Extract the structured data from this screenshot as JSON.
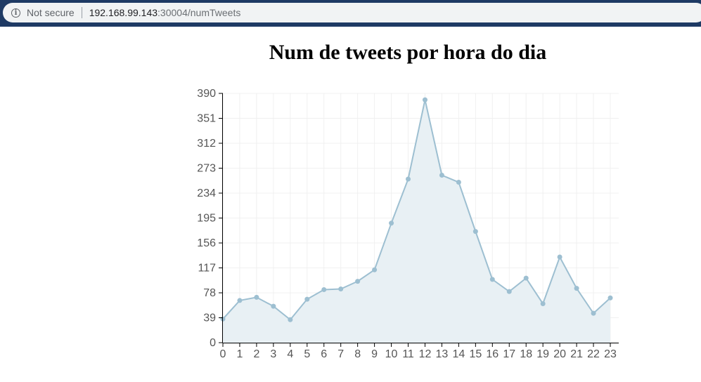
{
  "browser": {
    "security_label": "Not secure",
    "url_host": "192.168.99.143",
    "url_path": ":30004/numTweets",
    "bar_color": "#1e3a64"
  },
  "chart_data": {
    "type": "area",
    "title": "Num de tweets por hora do dia",
    "xlabel": "",
    "ylabel": "",
    "categories": [
      "0",
      "1",
      "2",
      "3",
      "4",
      "5",
      "6",
      "7",
      "8",
      "9",
      "10",
      "11",
      "12",
      "13",
      "14",
      "15",
      "16",
      "17",
      "18",
      "19",
      "20",
      "21",
      "22",
      "23"
    ],
    "values": [
      37,
      66,
      71,
      57,
      36,
      68,
      83,
      84,
      96,
      114,
      187,
      256,
      380,
      262,
      251,
      174,
      99,
      80,
      101,
      61,
      134,
      85,
      46,
      70
    ],
    "ylim": [
      0,
      390
    ],
    "yticks": [
      "0",
      "39",
      "78",
      "117",
      "156",
      "195",
      "234",
      "273",
      "312",
      "351",
      "390"
    ],
    "grid": true,
    "line_color": "#9dbfd1",
    "fill_color": "#e8f0f4",
    "point_color": "#9dbfd1"
  }
}
